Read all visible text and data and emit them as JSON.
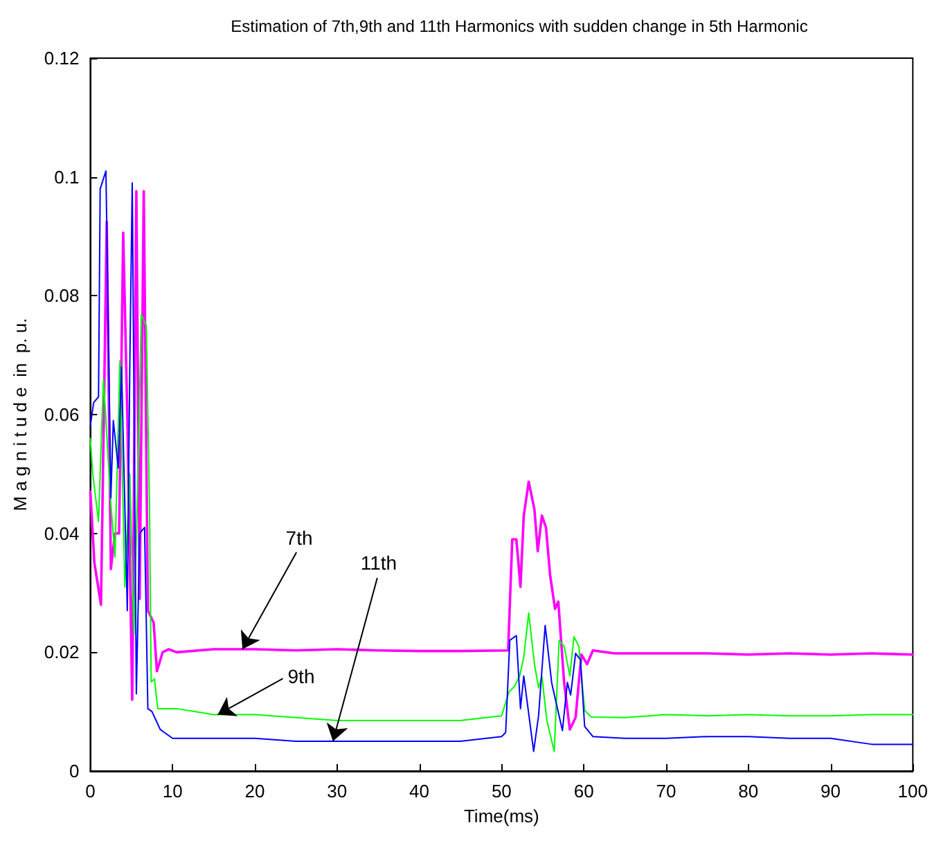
{
  "chart_data": {
    "type": "line",
    "title": "Estimation of 7th,9th and 11th Harmonics with sudden change in 5th Harmonic",
    "xlabel": "Time(ms)",
    "ylabel": "M a g n i t u d e  in  p. u.",
    "xlim": [
      0,
      100
    ],
    "xticks": [
      0,
      10,
      20,
      30,
      40,
      50,
      60,
      70,
      80,
      90,
      100
    ],
    "ylim": [
      0,
      0.12
    ],
    "yticks": [
      0,
      0.02,
      0.04,
      0.06,
      0.08,
      0.1,
      0.12
    ],
    "grid": false,
    "marker": "none",
    "line_style": "solid",
    "annotations": [
      {
        "text": "7th",
        "x": 18.5,
        "y": 0.0205
      },
      {
        "text": "9th",
        "x": 15.5,
        "y": 0.0095
      },
      {
        "text": "11th",
        "x": 29.5,
        "y": 0.005
      }
    ],
    "series": [
      {
        "color": "#ff00ff",
        "x": [
          0,
          0.5,
          1.3,
          2,
          2.5,
          3,
          3.5,
          4,
          4.5,
          5.1,
          5.6,
          6,
          6.5,
          7,
          7.7,
          8.1,
          8.8,
          9.5,
          10.5,
          15,
          20,
          25,
          30,
          35,
          40,
          45,
          50.8,
          51.3,
          51.8,
          52.3,
          52.7,
          53.3,
          54,
          54.4,
          54.9,
          55.4,
          55.9,
          56.5,
          56.9,
          57.6,
          58.3,
          59,
          59.7,
          60.4,
          61.1,
          63.7,
          70,
          75,
          80,
          85,
          90,
          95,
          100
        ],
        "values": [
          0.047,
          0.035,
          0.028,
          0.0925,
          0.034,
          0.04,
          0.04,
          0.0906,
          0.06,
          0.012,
          0.0976,
          0.029,
          0.0976,
          0.027,
          0.025,
          0.0168,
          0.02,
          0.0205,
          0.02,
          0.0205,
          0.0205,
          0.0203,
          0.0205,
          0.0203,
          0.0202,
          0.0202,
          0.0203,
          0.039,
          0.039,
          0.031,
          0.043,
          0.0487,
          0.044,
          0.037,
          0.043,
          0.041,
          0.033,
          0.0273,
          0.0285,
          0.015,
          0.007,
          0.009,
          0.0196,
          0.018,
          0.0203,
          0.0198,
          0.0198,
          0.0198,
          0.0196,
          0.0198,
          0.0196,
          0.0198,
          0.0196
        ]
      },
      {
        "color": "#00ff00",
        "x": [
          0,
          0.3,
          1,
          1.6,
          2.5,
          3,
          3.6,
          4.2,
          4.8,
          5.3,
          5.8,
          6.2,
          6.8,
          7.2,
          7.4,
          7.8,
          8.2,
          8.8,
          9.5,
          10.5,
          15,
          20,
          25,
          30,
          35,
          40,
          45,
          50,
          50.9,
          51.6,
          52.2,
          52.7,
          53.3,
          54,
          54.5,
          54.9,
          55.5,
          56.4,
          57,
          57.6,
          58.3,
          58.8,
          59.4,
          60.1,
          60.9,
          65,
          70,
          75,
          80,
          85,
          90,
          95,
          100
        ],
        "values": [
          0.056,
          0.05,
          0.042,
          0.066,
          0.045,
          0.036,
          0.069,
          0.031,
          0.05,
          0.023,
          0.05,
          0.0768,
          0.075,
          0.045,
          0.015,
          0.0155,
          0.0105,
          0.0105,
          0.0105,
          0.0105,
          0.0095,
          0.0095,
          0.009,
          0.0085,
          0.0085,
          0.0085,
          0.0085,
          0.0093,
          0.0133,
          0.0143,
          0.016,
          0.0192,
          0.0266,
          0.018,
          0.014,
          0.016,
          0.0086,
          0.0033,
          0.022,
          0.021,
          0.016,
          0.0226,
          0.021,
          0.0102,
          0.0091,
          0.009,
          0.0095,
          0.0093,
          0.0095,
          0.0093,
          0.0093,
          0.0095,
          0.0095
        ]
      },
      {
        "color": "#0000ff",
        "x": [
          0,
          0.4,
          1,
          1.2,
          1.9,
          2.5,
          2.8,
          3.4,
          3.8,
          4.5,
          4.8,
          5.1,
          5.6,
          6,
          6.6,
          7,
          7.5,
          8,
          8.5,
          9,
          9.5,
          10,
          11,
          15,
          20,
          25,
          30,
          35,
          40,
          45,
          50,
          50.5,
          51,
          51.8,
          52.3,
          52.7,
          53.9,
          54.5,
          55.3,
          56.1,
          57.4,
          58,
          58.4,
          59,
          59.6,
          60.1,
          61.1,
          65,
          70,
          75,
          80,
          85,
          90,
          95,
          100
        ],
        "values": [
          0.058,
          0.062,
          0.063,
          0.098,
          0.101,
          0.046,
          0.059,
          0.051,
          0.068,
          0.027,
          0.068,
          0.099,
          0.013,
          0.04,
          0.041,
          0.0105,
          0.01,
          0.0085,
          0.007,
          0.0065,
          0.006,
          0.0055,
          0.0055,
          0.0055,
          0.0055,
          0.005,
          0.005,
          0.005,
          0.005,
          0.005,
          0.0058,
          0.0065,
          0.022,
          0.0228,
          0.0105,
          0.016,
          0.0033,
          0.0093,
          0.0245,
          0.0148,
          0.0068,
          0.0149,
          0.0128,
          0.0198,
          0.0187,
          0.0075,
          0.0058,
          0.0055,
          0.0055,
          0.0058,
          0.0058,
          0.0055,
          0.0055,
          0.0045,
          0.0045
        ]
      }
    ]
  }
}
